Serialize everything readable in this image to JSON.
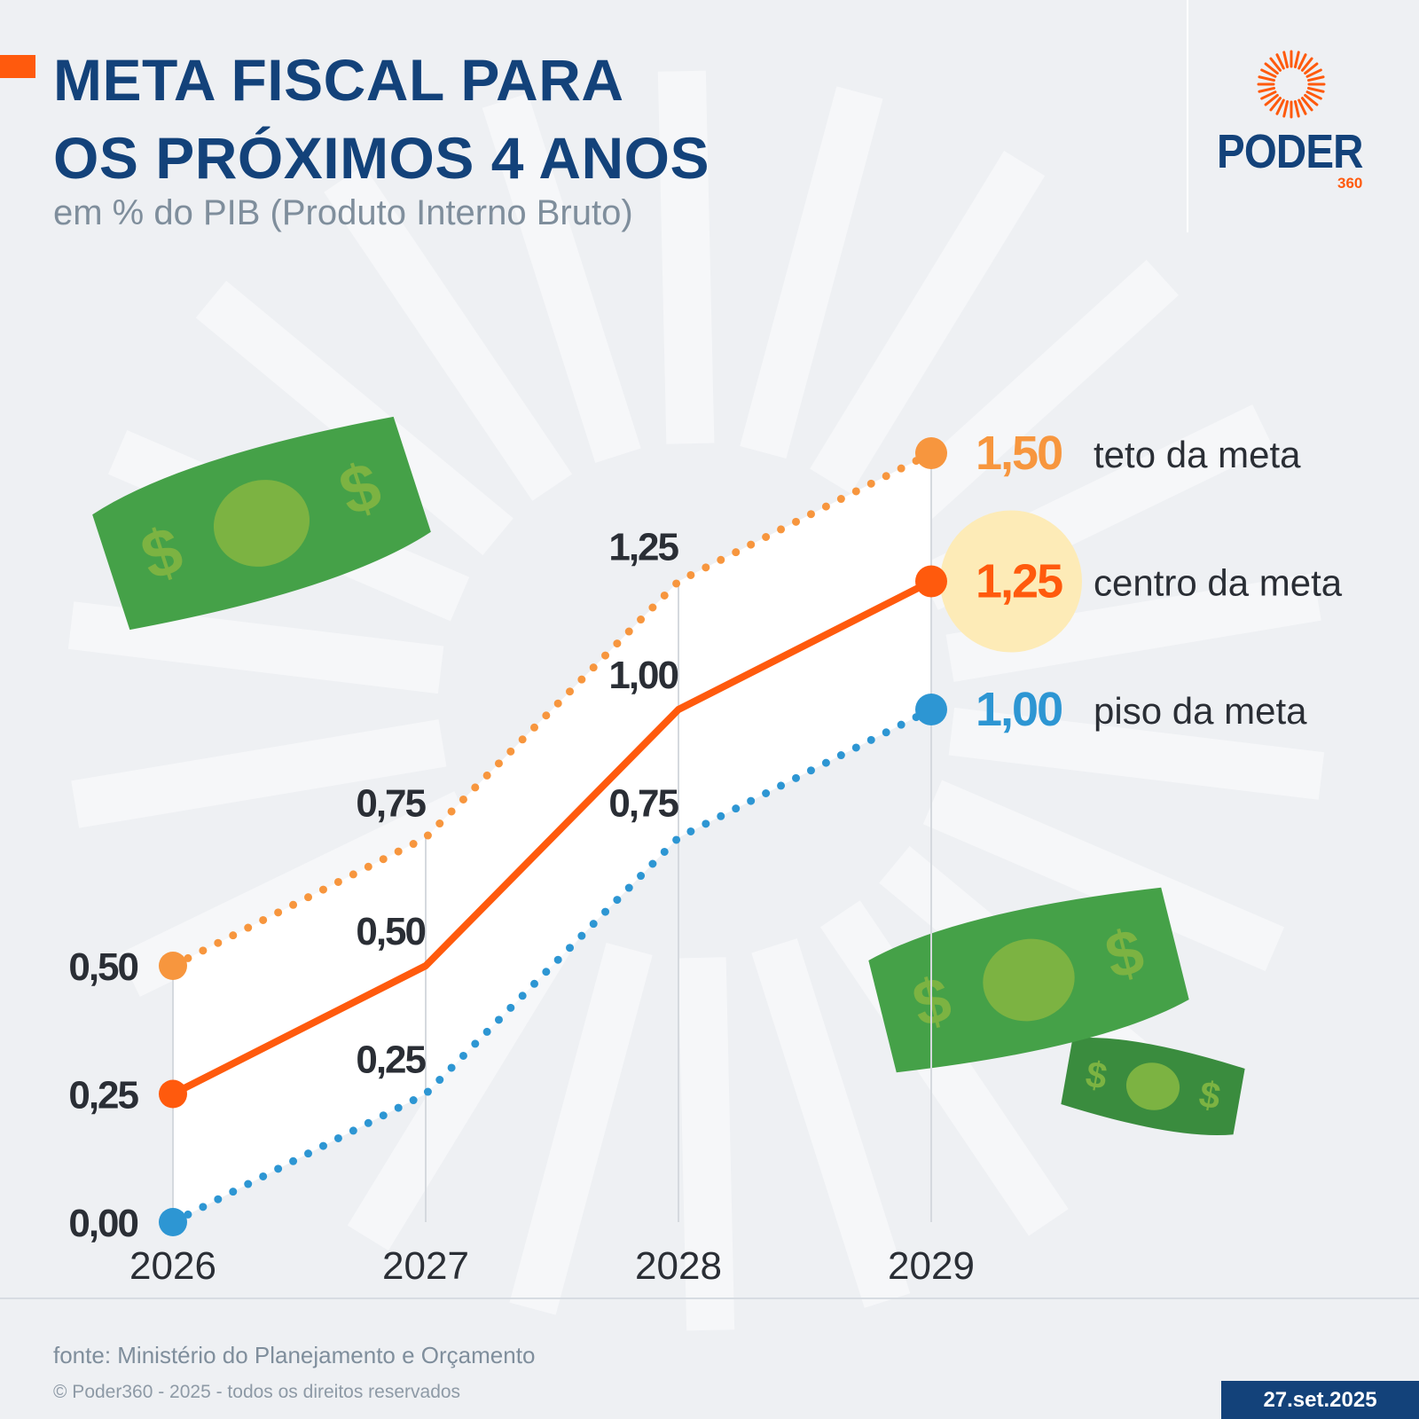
{
  "title": {
    "line1": "META FISCAL PARA",
    "line2": "OS PRÓXIMOS 4 ANOS"
  },
  "subtitle": "em % do PIB (Produto Interno Bruto)",
  "logo": {
    "word": "PODER",
    "number": "360"
  },
  "footer": {
    "source": "fonte: Ministério do Planejamento e Orçamento",
    "copyright": "© Poder360 - 2025 - todos os direitos reservados",
    "date": "27.set.2025"
  },
  "colors": {
    "title": "#13427a",
    "accent": "#ff5a0d",
    "upper": "#f7963e",
    "center": "#ff5a0d",
    "lower": "#2d96d3",
    "band": "#ffffff",
    "highlight": "#fdebb7",
    "labels": "#2a2e35",
    "money_green": "#45a148",
    "money_light": "#7cb342"
  },
  "icons": [
    "dollar-bill-icon",
    "sun-rays-logo-icon"
  ],
  "chart_data": {
    "type": "line",
    "title": "META FISCAL PARA OS PRÓXIMOS 4 ANOS",
    "subtitle": "em % do PIB (Produto Interno Bruto)",
    "x": [
      "2026",
      "2027",
      "2028",
      "2029"
    ],
    "ylim": [
      0,
      1.5
    ],
    "grid": false,
    "legend": "right, inline labels at 2029",
    "series": [
      {
        "name": "teto da meta",
        "values": [
          0.5,
          0.75,
          1.25,
          1.5
        ],
        "labels": [
          "0,50",
          "0,75",
          "1,25",
          "1,50"
        ],
        "color": "#f7963e",
        "style": "dotted"
      },
      {
        "name": "centro da meta",
        "values": [
          0.25,
          0.5,
          1.0,
          1.25
        ],
        "labels": [
          "0,25",
          "0,50",
          "1,00",
          "1,25"
        ],
        "color": "#ff5a0d",
        "style": "solid"
      },
      {
        "name": "piso da meta",
        "values": [
          0.0,
          0.25,
          0.75,
          1.0
        ],
        "labels": [
          "0,00",
          "0,25",
          "0,75",
          "1,00"
        ],
        "color": "#2d96d3",
        "style": "dotted"
      }
    ]
  }
}
